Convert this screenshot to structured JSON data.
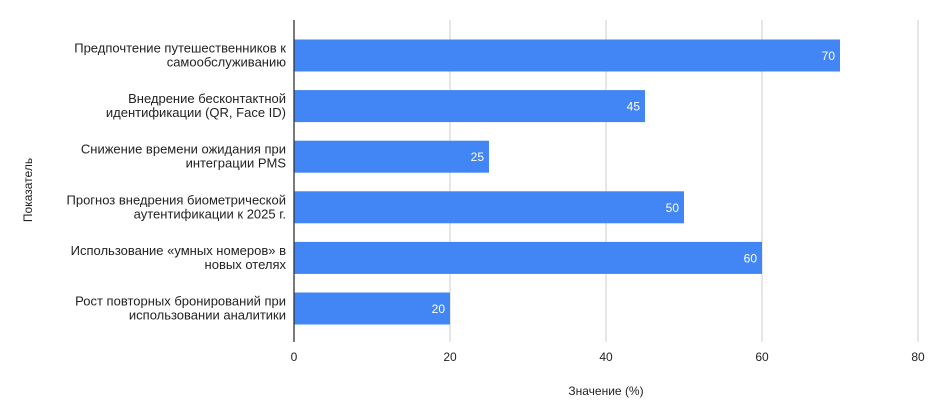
{
  "chart_data": {
    "type": "bar",
    "orientation": "horizontal",
    "categories": [
      [
        "Предпочтение путешественников к",
        "самообслуживанию"
      ],
      [
        "Внедрение бесконтактной",
        "идентификации (QR, Face ID)"
      ],
      [
        "Снижение времени ожидания при",
        "интеграции PMS"
      ],
      [
        "Прогноз внедрения биометрической",
        "аутентификации к 2025 г."
      ],
      [
        "Использование «умных номеров» в",
        "новых отелях"
      ],
      [
        "Рост повторных бронирований при",
        "использовании аналитики"
      ]
    ],
    "values": [
      70,
      45,
      25,
      50,
      60,
      20
    ],
    "data_labels": [
      "70",
      "45",
      "25",
      "50",
      "60",
      "20"
    ],
    "xlabel": "Значение (%)",
    "ylabel": "Показатель",
    "xlim": [
      0,
      80
    ],
    "xticks": [
      0,
      20,
      40,
      60,
      80
    ],
    "xtick_labels": [
      "0",
      "20",
      "40",
      "60",
      "80"
    ],
    "grid": true,
    "bar_color": "#4285f4",
    "grid_color": "#cccccc",
    "axis_color": "#333333"
  }
}
